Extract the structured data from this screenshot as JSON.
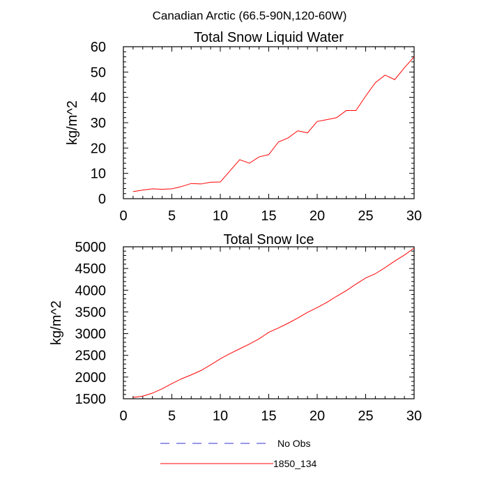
{
  "figure_title": "Canadian Arctic (66.5-90N,120-60W)",
  "legend": [
    {
      "label": "No Obs",
      "color": "#3333cc",
      "style": "dashed"
    },
    {
      "label": "1850_134",
      "color": "#ff0000",
      "style": "solid"
    }
  ],
  "chart_data": [
    {
      "type": "line",
      "title": "Total Snow Liquid Water",
      "xlabel": "",
      "ylabel": "kg/m^2",
      "xlim": [
        0,
        30
      ],
      "ylim": [
        0,
        60
      ],
      "xticks": [
        0,
        5,
        10,
        15,
        20,
        25,
        30
      ],
      "yticks": [
        0,
        10,
        20,
        30,
        40,
        50,
        60
      ],
      "grid": false,
      "series": [
        {
          "name": "1850_134",
          "color": "#ff0000",
          "x": [
            1,
            2,
            3,
            4,
            5,
            6,
            7,
            8,
            9,
            10,
            11,
            12,
            13,
            14,
            15,
            16,
            17,
            18,
            19,
            20,
            21,
            22,
            23,
            24,
            25,
            26,
            27,
            28,
            29,
            30
          ],
          "values": [
            2.8,
            3.4,
            3.9,
            3.7,
            3.9,
            4.8,
            6.0,
            5.8,
            6.5,
            6.6,
            11.0,
            15.4,
            14.0,
            16.5,
            17.4,
            22.4,
            24.0,
            26.8,
            26.0,
            30.5,
            31.2,
            32.0,
            34.8,
            34.8,
            40.5,
            45.8,
            48.8,
            47.0,
            51.7,
            56.0
          ]
        }
      ]
    },
    {
      "type": "line",
      "title": "Total Snow Ice",
      "xlabel": "",
      "ylabel": "kg/m^2",
      "xlim": [
        0,
        30
      ],
      "ylim": [
        1500,
        5000
      ],
      "xticks": [
        0,
        5,
        10,
        15,
        20,
        25,
        30
      ],
      "yticks": [
        1500,
        2000,
        2500,
        3000,
        3500,
        4000,
        4500,
        5000
      ],
      "grid": false,
      "series": [
        {
          "name": "1850_134",
          "color": "#ff0000",
          "x": [
            1,
            2,
            3,
            4,
            5,
            6,
            7,
            8,
            9,
            10,
            11,
            12,
            13,
            14,
            15,
            16,
            17,
            18,
            19,
            20,
            21,
            22,
            23,
            24,
            25,
            26,
            27,
            28,
            29,
            30
          ],
          "values": [
            1530,
            1560,
            1630,
            1730,
            1850,
            1960,
            2050,
            2150,
            2280,
            2420,
            2540,
            2650,
            2760,
            2880,
            3030,
            3130,
            3240,
            3360,
            3490,
            3600,
            3720,
            3860,
            3990,
            4140,
            4280,
            4380,
            4520,
            4670,
            4810,
            4970
          ]
        }
      ]
    }
  ]
}
